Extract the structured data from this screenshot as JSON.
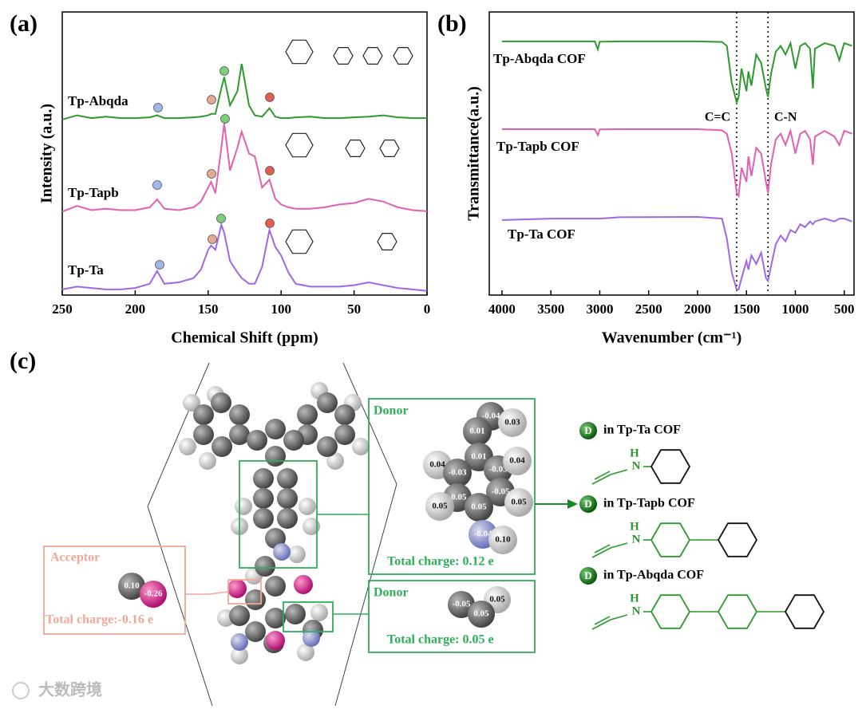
{
  "chart_data": [
    {
      "type": "line",
      "panel_label": "(a)",
      "xlabel": "Chemical Shift (ppm)",
      "ylabel": "Intensity (a.u.)",
      "x": [
        250,
        240,
        230,
        220,
        210,
        200,
        190,
        185,
        180,
        170,
        160,
        155,
        150,
        148,
        145,
        141,
        139,
        135,
        130,
        127,
        122,
        118,
        113,
        108,
        104,
        100,
        95,
        90,
        80,
        70,
        60,
        50,
        40,
        30,
        20,
        10,
        0
      ],
      "series": [
        {
          "name": "Tp-Abqda",
          "color": "#2e9a2e",
          "values": [
            62,
            63.5,
            62.5,
            63,
            62.5,
            62.5,
            62.8,
            63.5,
            62.5,
            62.5,
            62.8,
            63,
            63.5,
            64,
            64,
            73,
            77,
            67,
            72,
            81.7,
            67,
            63.5,
            63,
            66,
            63,
            62.5,
            62.5,
            62.8,
            63,
            62.5,
            62.5,
            62.8,
            63,
            63.5,
            62.8,
            62.5,
            62.5
          ]
        },
        {
          "name": "Tp-Tapb",
          "color": "#e55fb0",
          "values": [
            29.5,
            31.5,
            30,
            30.5,
            30,
            30,
            31,
            33.8,
            30.5,
            30,
            31,
            33,
            38,
            40,
            36,
            52,
            60.6,
            44,
            52,
            57.7,
            50,
            49,
            38,
            40.8,
            34,
            32,
            31,
            30.5,
            30.5,
            31,
            32,
            32.5,
            34,
            33,
            31,
            30,
            29.6
          ]
        },
        {
          "name": "Tp-Ta",
          "color": "#a066e6",
          "values": [
            2,
            3,
            2.5,
            2,
            2,
            2.5,
            4,
            8.5,
            4,
            4.5,
            6,
            9,
            16,
            17.5,
            16,
            24.8,
            22,
            12,
            8,
            6,
            4,
            4,
            10,
            23,
            17,
            14,
            8,
            4,
            3,
            3,
            3,
            3.5,
            4.5,
            3.5,
            2.5,
            2,
            1.5
          ]
        }
      ],
      "xlim": [
        250,
        0
      ],
      "xticks": [
        250,
        200,
        150,
        100,
        50,
        0
      ],
      "ylim": [
        0,
        100
      ]
    },
    {
      "type": "line",
      "panel_label": "(b)",
      "xlabel": "Wavenumber (cm⁻¹)",
      "ylabel": "Transmittance(a.u.)",
      "x": [
        4000,
        3500,
        3050,
        3020,
        3000,
        2800,
        2000,
        1750,
        1700,
        1650,
        1600,
        1580,
        1550,
        1500,
        1480,
        1450,
        1400,
        1350,
        1300,
        1280,
        1250,
        1200,
        1150,
        1100,
        1050,
        1000,
        950,
        900,
        850,
        820,
        800,
        700,
        600,
        550,
        500,
        420
      ],
      "series": [
        {
          "name": "Tp-Abqda COF",
          "color": "#2e9a2e",
          "values": [
            89.6,
            89.6,
            89.6,
            86.8,
            89.5,
            89.6,
            89.6,
            89.4,
            88,
            75,
            68,
            70,
            80,
            72,
            79,
            74,
            85,
            82,
            73,
            70,
            78,
            86,
            88,
            85,
            89,
            80,
            88,
            89,
            87,
            73,
            87,
            89,
            88,
            83,
            89,
            88
          ]
        },
        {
          "name": "Tp-Tapb COF",
          "color": "#e55fb0",
          "values": [
            58.6,
            58.6,
            58.6,
            56.5,
            58.5,
            58.6,
            58.6,
            58.2,
            57,
            50,
            36,
            35,
            45,
            40,
            49,
            42,
            52,
            50,
            40,
            36,
            46,
            55,
            57,
            53,
            58,
            50,
            57,
            58,
            55,
            46,
            56,
            58,
            56,
            53,
            58,
            57
          ]
        },
        {
          "name": "Tp-Ta COF",
          "color": "#a066e6",
          "values": [
            26.5,
            27,
            27,
            27,
            27,
            27.5,
            27.6,
            27,
            20,
            8,
            2,
            2,
            6,
            12,
            9,
            14,
            11,
            15,
            6,
            5,
            10,
            18,
            21,
            19,
            23,
            22,
            25,
            24,
            26,
            25,
            26,
            27,
            26,
            27,
            27,
            26
          ]
        }
      ],
      "xlim": [
        4130,
        400
      ],
      "xticks": [
        4000,
        3500,
        3000,
        2500,
        2000,
        1500,
        1000,
        500
      ],
      "ylim": [
        0,
        100
      ],
      "annotations": [
        {
          "text": "C=C",
          "x": 1600
        },
        {
          "text": "C-N",
          "x": 1280
        }
      ]
    }
  ],
  "panel_c": {
    "label": "(c)",
    "acceptor": {
      "title": "Acceptor",
      "charges": [
        "0.10",
        "-0.26"
      ],
      "total": "Total charge:-0.16  e"
    },
    "donor1": {
      "title": "Donor",
      "charges": [
        "-0.04",
        "0.03",
        "0.01",
        "0.01",
        "0.04",
        "-0.03",
        "-0.03",
        "0.04",
        "-0.05",
        "-0.05",
        "0.05",
        "0.05",
        "0.05",
        "-0.04",
        "0.10"
      ],
      "total": "Total charge: 0.12 e"
    },
    "donor2": {
      "title": "Donor",
      "charges": [
        "-0.05",
        "0.05",
        "0.05"
      ],
      "total": "Total charge: 0.05 e"
    },
    "fragments": [
      {
        "badge": "D",
        "label": "in Tp-Ta COF",
        "h": "H",
        "n": "N"
      },
      {
        "badge": "D",
        "label": "in Tp-Tapb COF",
        "h": "H",
        "n": "N"
      },
      {
        "badge": "D",
        "label": "in Tp-Abqda COF",
        "h": "H",
        "n": "N"
      }
    ]
  },
  "watermark": "大数跨境"
}
